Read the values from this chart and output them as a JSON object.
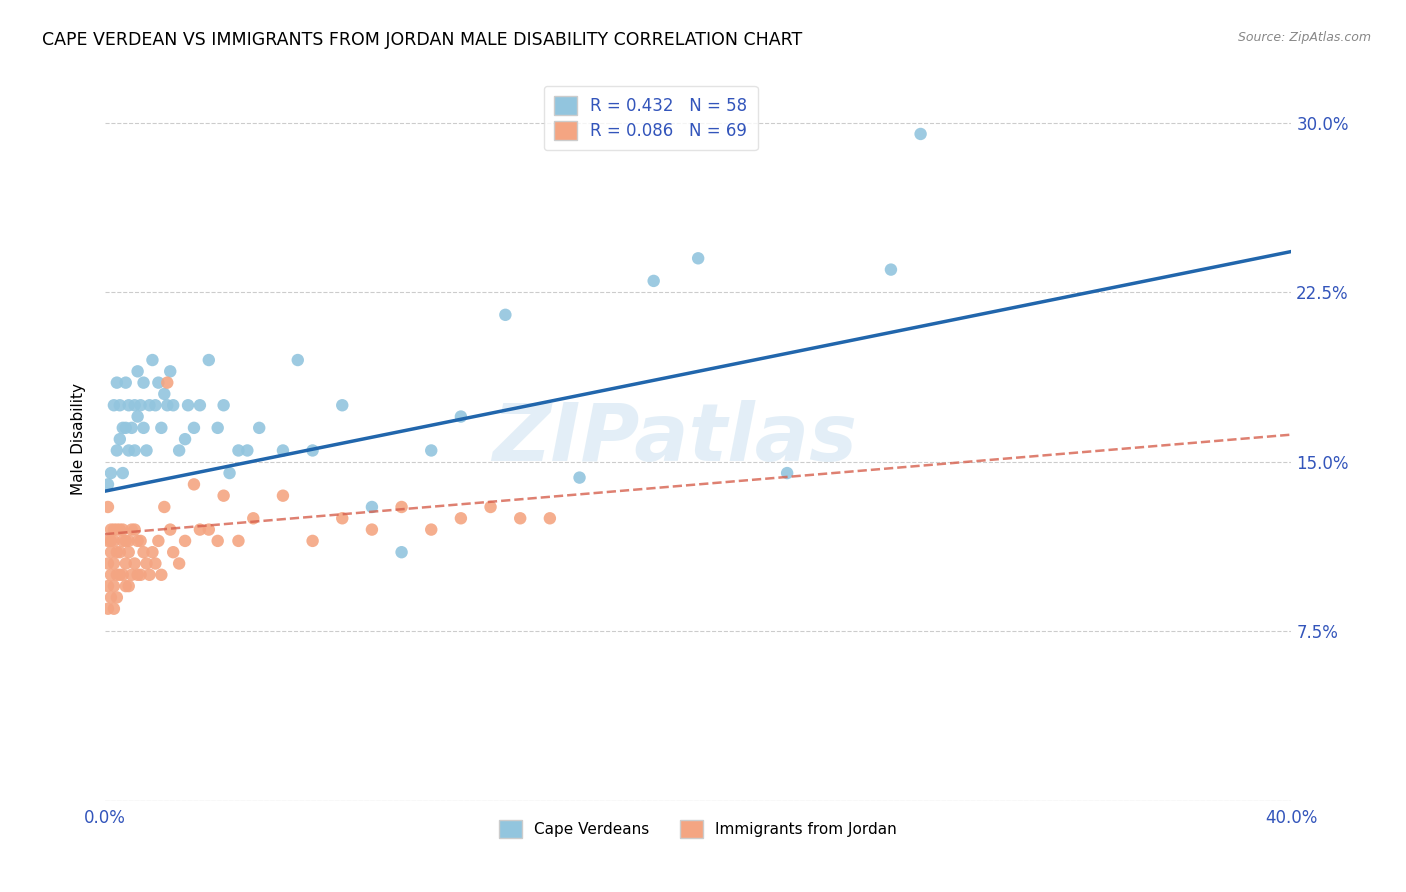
{
  "title": "CAPE VERDEAN VS IMMIGRANTS FROM JORDAN MALE DISABILITY CORRELATION CHART",
  "source": "Source: ZipAtlas.com",
  "ylabel": "Male Disability",
  "xlim": [
    0.0,
    0.4
  ],
  "ylim": [
    0.0,
    0.32
  ],
  "blue_color": "#92c5de",
  "blue_line_color": "#2166ac",
  "pink_color": "#f4a582",
  "pink_line_color": "#d6604d",
  "R_blue": 0.432,
  "N_blue": 58,
  "R_pink": 0.086,
  "N_pink": 69,
  "legend_label_blue": "Cape Verdeans",
  "legend_label_pink": "Immigrants from Jordan",
  "watermark": "ZIPatlas",
  "blue_line_x0": 0.0,
  "blue_line_y0": 0.137,
  "blue_line_x1": 0.4,
  "blue_line_y1": 0.243,
  "pink_line_x0": 0.0,
  "pink_line_y0": 0.118,
  "pink_line_x1": 0.4,
  "pink_line_y1": 0.162,
  "blue_points_x": [
    0.001,
    0.002,
    0.003,
    0.004,
    0.004,
    0.005,
    0.005,
    0.006,
    0.006,
    0.007,
    0.007,
    0.008,
    0.008,
    0.009,
    0.01,
    0.01,
    0.011,
    0.011,
    0.012,
    0.013,
    0.013,
    0.014,
    0.015,
    0.016,
    0.017,
    0.018,
    0.019,
    0.02,
    0.021,
    0.022,
    0.023,
    0.025,
    0.027,
    0.028,
    0.03,
    0.032,
    0.035,
    0.038,
    0.04,
    0.042,
    0.045,
    0.048,
    0.052,
    0.06,
    0.065,
    0.07,
    0.08,
    0.09,
    0.1,
    0.11,
    0.12,
    0.135,
    0.16,
    0.185,
    0.2,
    0.23,
    0.265,
    0.275
  ],
  "blue_points_y": [
    0.14,
    0.145,
    0.175,
    0.155,
    0.185,
    0.16,
    0.175,
    0.145,
    0.165,
    0.165,
    0.185,
    0.155,
    0.175,
    0.165,
    0.155,
    0.175,
    0.17,
    0.19,
    0.175,
    0.165,
    0.185,
    0.155,
    0.175,
    0.195,
    0.175,
    0.185,
    0.165,
    0.18,
    0.175,
    0.19,
    0.175,
    0.155,
    0.16,
    0.175,
    0.165,
    0.175,
    0.195,
    0.165,
    0.175,
    0.145,
    0.155,
    0.155,
    0.165,
    0.155,
    0.195,
    0.155,
    0.175,
    0.13,
    0.11,
    0.155,
    0.17,
    0.215,
    0.143,
    0.23,
    0.24,
    0.145,
    0.235,
    0.295
  ],
  "pink_points_x": [
    0.001,
    0.001,
    0.001,
    0.001,
    0.001,
    0.002,
    0.002,
    0.002,
    0.002,
    0.002,
    0.003,
    0.003,
    0.003,
    0.003,
    0.003,
    0.004,
    0.004,
    0.004,
    0.004,
    0.005,
    0.005,
    0.005,
    0.006,
    0.006,
    0.006,
    0.007,
    0.007,
    0.007,
    0.008,
    0.008,
    0.008,
    0.009,
    0.009,
    0.01,
    0.01,
    0.011,
    0.011,
    0.012,
    0.012,
    0.013,
    0.014,
    0.015,
    0.016,
    0.017,
    0.018,
    0.019,
    0.02,
    0.021,
    0.022,
    0.023,
    0.025,
    0.027,
    0.03,
    0.032,
    0.035,
    0.038,
    0.04,
    0.045,
    0.05,
    0.06,
    0.07,
    0.08,
    0.09,
    0.1,
    0.11,
    0.12,
    0.13,
    0.14,
    0.15
  ],
  "pink_points_y": [
    0.13,
    0.115,
    0.105,
    0.095,
    0.085,
    0.12,
    0.115,
    0.11,
    0.1,
    0.09,
    0.12,
    0.115,
    0.105,
    0.095,
    0.085,
    0.12,
    0.11,
    0.1,
    0.09,
    0.12,
    0.11,
    0.1,
    0.12,
    0.115,
    0.1,
    0.115,
    0.105,
    0.095,
    0.115,
    0.11,
    0.095,
    0.12,
    0.1,
    0.12,
    0.105,
    0.115,
    0.1,
    0.115,
    0.1,
    0.11,
    0.105,
    0.1,
    0.11,
    0.105,
    0.115,
    0.1,
    0.13,
    0.185,
    0.12,
    0.11,
    0.105,
    0.115,
    0.14,
    0.12,
    0.12,
    0.115,
    0.135,
    0.115,
    0.125,
    0.135,
    0.115,
    0.125,
    0.12,
    0.13,
    0.12,
    0.125,
    0.13,
    0.125,
    0.125
  ]
}
